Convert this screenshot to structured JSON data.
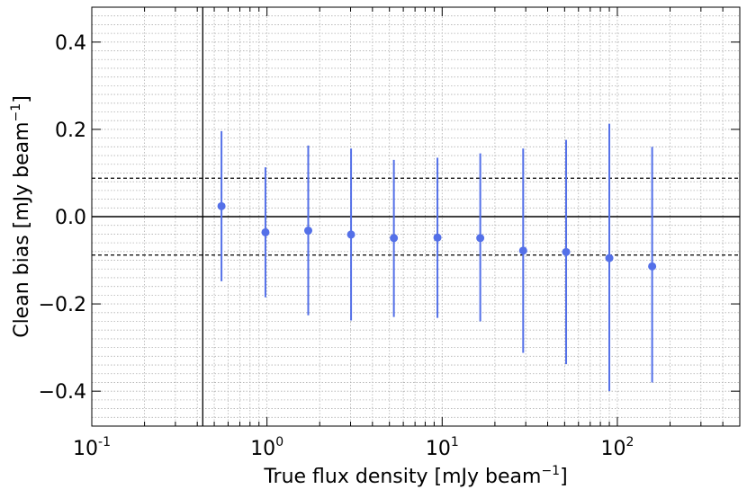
{
  "chart_data": {
    "type": "scatter",
    "title": "",
    "xlabel": "True flux density [mJy beam",
    "xlabel_sup": "−1",
    "xlabel_end": "]",
    "ylabel": "Clean bias [mJy beam",
    "ylabel_sup": "−1",
    "ylabel_end": "]",
    "xscale": "log",
    "xlim": [
      0.1,
      500
    ],
    "ylim": [
      -0.48,
      0.48
    ],
    "grid": true,
    "x_tick_labels": [
      {
        "base": "10",
        "exp": "-1",
        "value": 0.1
      },
      {
        "base": "10",
        "exp": "0",
        "value": 1
      },
      {
        "base": "10",
        "exp": "1",
        "value": 10
      },
      {
        "base": "10",
        "exp": "2",
        "value": 100
      }
    ],
    "y_tick_labels": [
      {
        "label": "0.4",
        "value": 0.4
      },
      {
        "label": "0.2",
        "value": 0.2
      },
      {
        "label": "0.0",
        "value": 0.0
      },
      {
        "label": "−0.2",
        "value": -0.2
      },
      {
        "label": "−0.4",
        "value": -0.4
      }
    ],
    "reference_lines": {
      "horizontal_solid": 0.0,
      "horizontal_dashed": [
        0.088,
        -0.088
      ],
      "vertical_solid": 0.43
    },
    "series": [
      {
        "color": "#5470e8",
        "points": [
          {
            "x": 0.55,
            "y": 0.024,
            "err_low": -0.148,
            "err_high": 0.196
          },
          {
            "x": 0.98,
            "y": -0.036,
            "err_low": -0.185,
            "err_high": 0.113
          },
          {
            "x": 1.72,
            "y": -0.032,
            "err_low": -0.226,
            "err_high": 0.163
          },
          {
            "x": 3.02,
            "y": -0.041,
            "err_low": -0.238,
            "err_high": 0.156
          },
          {
            "x": 5.3,
            "y": -0.049,
            "err_low": -0.23,
            "err_high": 0.13
          },
          {
            "x": 9.4,
            "y": -0.048,
            "err_low": -0.232,
            "err_high": 0.135
          },
          {
            "x": 16.5,
            "y": -0.049,
            "err_low": -0.24,
            "err_high": 0.145
          },
          {
            "x": 29.0,
            "y": -0.078,
            "err_low": -0.312,
            "err_high": 0.156
          },
          {
            "x": 51.0,
            "y": -0.081,
            "err_low": -0.338,
            "err_high": 0.176
          },
          {
            "x": 90.0,
            "y": -0.095,
            "err_low": -0.4,
            "err_high": 0.213
          },
          {
            "x": 158.0,
            "y": -0.114,
            "err_low": -0.38,
            "err_high": 0.16
          }
        ]
      }
    ]
  }
}
